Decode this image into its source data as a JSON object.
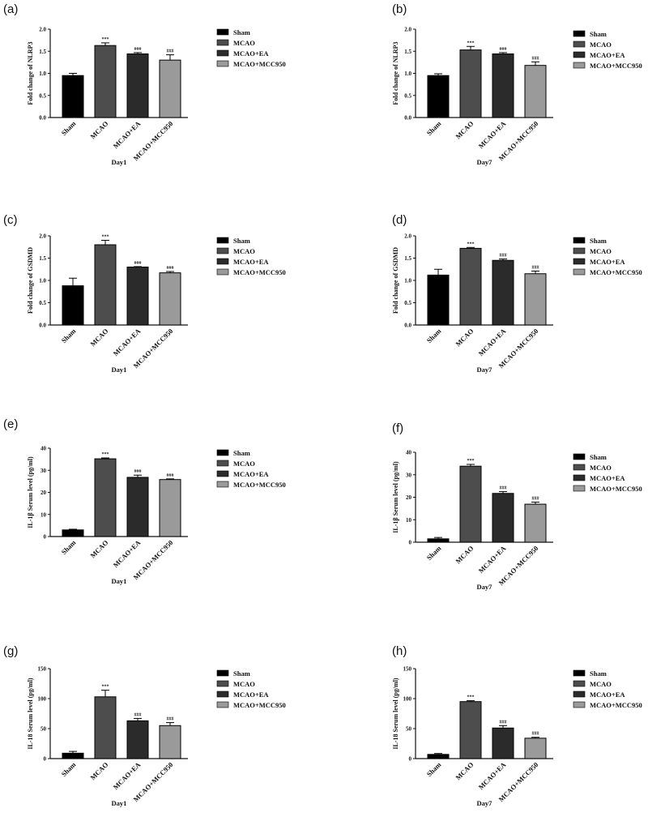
{
  "groups": [
    "Sham",
    "MCAO",
    "MCAO+EA",
    "MCAO+MCC950"
  ],
  "colors": [
    "#000000",
    "#4d4d4d",
    "#2b2b2b",
    "#9a9a9a"
  ],
  "chart_data": [
    {
      "panel": "(a)",
      "type": "bar",
      "categories": [
        "Sham",
        "MCAO",
        "MCAO+EA",
        "MCAO+MCC950"
      ],
      "values": [
        0.95,
        1.63,
        1.44,
        1.3
      ],
      "errors": [
        0.05,
        0.06,
        0.03,
        0.12
      ],
      "sig": [
        "",
        "***",
        "###",
        "###"
      ],
      "ylabel": "Fold change of NLRP3",
      "xlabel": "Day1",
      "ylim": [
        0,
        2.0
      ],
      "yticks": [
        "0.0",
        "0.5",
        "1.0",
        "1.5",
        "2.0"
      ],
      "legend": [
        "Sham",
        "MCAO",
        "MCAO+EA",
        "MCAO+MCC950"
      ]
    },
    {
      "panel": "(b)",
      "type": "bar",
      "categories": [
        "Sham",
        "MCAO",
        "MCAO+EA",
        "MCAO+MCC950"
      ],
      "values": [
        0.95,
        1.53,
        1.44,
        1.18
      ],
      "errors": [
        0.04,
        0.08,
        0.03,
        0.08
      ],
      "sig": [
        "",
        "***",
        "###",
        "###"
      ],
      "ylabel": "Fold change of NLRP3",
      "xlabel": "Day7",
      "ylim": [
        0,
        2.0
      ],
      "yticks": [
        "0.0",
        "0.5",
        "1.0",
        "1.5",
        "2.0"
      ],
      "legend": [
        "Sham",
        "MCAO",
        "MCAO+EA",
        "MCAO+MCC950"
      ]
    },
    {
      "panel": "(c)",
      "type": "bar",
      "categories": [
        "Sham",
        "MCAO",
        "MCAO+EA",
        "MCAO+MCC950"
      ],
      "values": [
        0.88,
        1.8,
        1.3,
        1.17
      ],
      "errors": [
        0.17,
        0.1,
        0.01,
        0.03
      ],
      "sig": [
        "",
        "***",
        "###",
        "###"
      ],
      "ylabel": "Fold change of GSDMD",
      "xlabel": "Day1",
      "ylim": [
        0,
        2.0
      ],
      "yticks": [
        "0.0",
        "0.5",
        "1.0",
        "1.5",
        "2.0"
      ],
      "legend": [
        "Sham",
        "MCAO",
        "MCAO+EA",
        "MCAO+MCC950"
      ]
    },
    {
      "panel": "(d)",
      "type": "bar",
      "categories": [
        "Sham",
        "MCAO",
        "MCAO+EA",
        "MCAO+MCC950"
      ],
      "values": [
        1.12,
        1.72,
        1.45,
        1.15
      ],
      "errors": [
        0.13,
        0.02,
        0.03,
        0.06
      ],
      "sig": [
        "",
        "***",
        "###",
        "###"
      ],
      "ylabel": "Fold change of GSDMD",
      "xlabel": "Day7",
      "ylim": [
        0,
        2.0
      ],
      "yticks": [
        "0.0",
        "0.5",
        "1.0",
        "1.5",
        "2.0"
      ],
      "legend": [
        "Sham",
        "MCAO",
        "MCAO+EA",
        "MCAO+MCC950"
      ]
    },
    {
      "panel": "(e)",
      "type": "bar",
      "categories": [
        "Sham",
        "MCAO",
        "MCAO+EA",
        "MCAO+MCC950"
      ],
      "values": [
        3.0,
        35.2,
        26.8,
        25.8
      ],
      "errors": [
        0.3,
        0.4,
        1.0,
        0.3
      ],
      "sig": [
        "",
        "***",
        "###",
        "###"
      ],
      "ylabel": "IL-1β Serum level (pg/ml)",
      "xlabel": "Day1",
      "ylim": [
        0,
        40
      ],
      "yticks": [
        "0",
        "10",
        "20",
        "30",
        "40"
      ],
      "legend": [
        "Sham",
        "MCAO",
        "MCAO+EA",
        "MCAO+MCC950"
      ]
    },
    {
      "panel": "(f)",
      "type": "bar",
      "categories": [
        "Sham",
        "MCAO",
        "MCAO+EA",
        "MCAO+MCC950"
      ],
      "values": [
        1.5,
        33.8,
        21.7,
        16.9
      ],
      "errors": [
        0.6,
        0.8,
        0.8,
        0.9
      ],
      "sig": [
        "",
        "***",
        "###",
        "###"
      ],
      "ylabel": "IL-1β Serum level (pg/ml)",
      "xlabel": "Day7",
      "ylim": [
        0,
        40
      ],
      "yticks": [
        "0",
        "10",
        "20",
        "30",
        "40"
      ],
      "legend": [
        "Sham",
        "MCAO",
        "MCAO+EA",
        "MCAO+MCC950"
      ]
    },
    {
      "panel": "(g)",
      "type": "bar",
      "categories": [
        "Sham",
        "MCAO",
        "MCAO+EA",
        "MCAO+MCC950"
      ],
      "values": [
        9,
        103,
        63,
        55
      ],
      "errors": [
        3,
        11,
        4,
        5
      ],
      "sig": [
        "",
        "***",
        "###",
        "###"
      ],
      "ylabel": "IL-18 Serum level (pg/ml)",
      "xlabel": "Day1",
      "ylim": [
        0,
        150
      ],
      "yticks": [
        "0",
        "50",
        "100",
        "150"
      ],
      "legend": [
        "Sham",
        "MCAO",
        "MCAO+EA",
        "MCAO+MCC950"
      ]
    },
    {
      "panel": "(h)",
      "type": "bar",
      "categories": [
        "Sham",
        "MCAO",
        "MCAO+EA",
        "MCAO+MCC950"
      ],
      "values": [
        7,
        95,
        51,
        34
      ],
      "errors": [
        1.5,
        1.5,
        4,
        1.5
      ],
      "sig": [
        "",
        "***",
        "###",
        "###"
      ],
      "ylabel": "IL-18 Serum level (pg/ml)",
      "xlabel": "Day7",
      "ylim": [
        0,
        150
      ],
      "yticks": [
        "0",
        "50",
        "100",
        "150"
      ],
      "legend": [
        "Sham",
        "MCAO",
        "MCAO+EA",
        "MCAO+MCC950"
      ]
    }
  ]
}
